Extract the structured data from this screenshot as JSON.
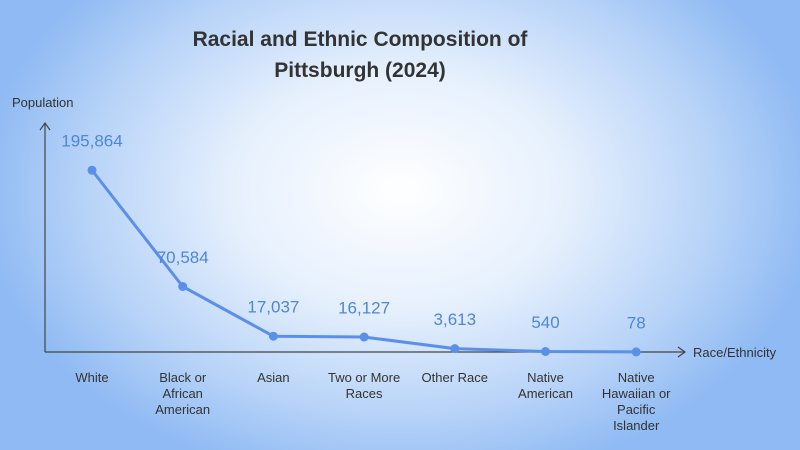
{
  "chart_data": {
    "type": "line",
    "title": "Racial and Ethnic Composition of Pittsburgh (2024)",
    "y_label": "Population",
    "x_label": "Race/Ethnicity",
    "categories": [
      "White",
      "Black or African American",
      "Asian",
      "Two or More Races",
      "Other Race",
      "Native American",
      "Native Hawaiian or Pacific Islander"
    ],
    "values": [
      195864,
      70584,
      17037,
      16127,
      3613,
      540,
      78
    ],
    "value_labels": [
      "195,864",
      "70,584",
      "17,037",
      "16,127",
      "3,613",
      "540",
      "78"
    ],
    "color": "#5b8fe8",
    "ylim": [
      0,
      250000
    ]
  }
}
